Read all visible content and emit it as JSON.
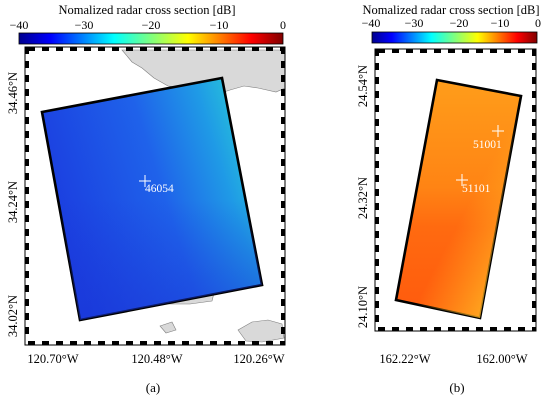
{
  "panel_a": {
    "colorbar": {
      "title": "Nomalized radar cross section [dB]",
      "ticks": [
        "−40",
        "−30",
        "−20",
        "−10",
        "0"
      ]
    },
    "y_ticks": [
      "34.46°N",
      "34.24°N",
      "34.02°N"
    ],
    "x_ticks": [
      "120.70°W",
      "120.48°W",
      "120.26°W"
    ],
    "buoy": "46054",
    "caption": "(a)"
  },
  "panel_b": {
    "colorbar": {
      "title": "Nomalized radar cross section [dB]",
      "ticks": [
        "−40",
        "−30",
        "−20",
        "−10",
        "0"
      ]
    },
    "y_ticks": [
      "24.54°N",
      "24.32°N",
      "24.10°N"
    ],
    "x_ticks": [
      "162.22°W",
      "162.00°W"
    ],
    "buoys": [
      "51001",
      "51101"
    ],
    "caption": "(b)"
  }
}
